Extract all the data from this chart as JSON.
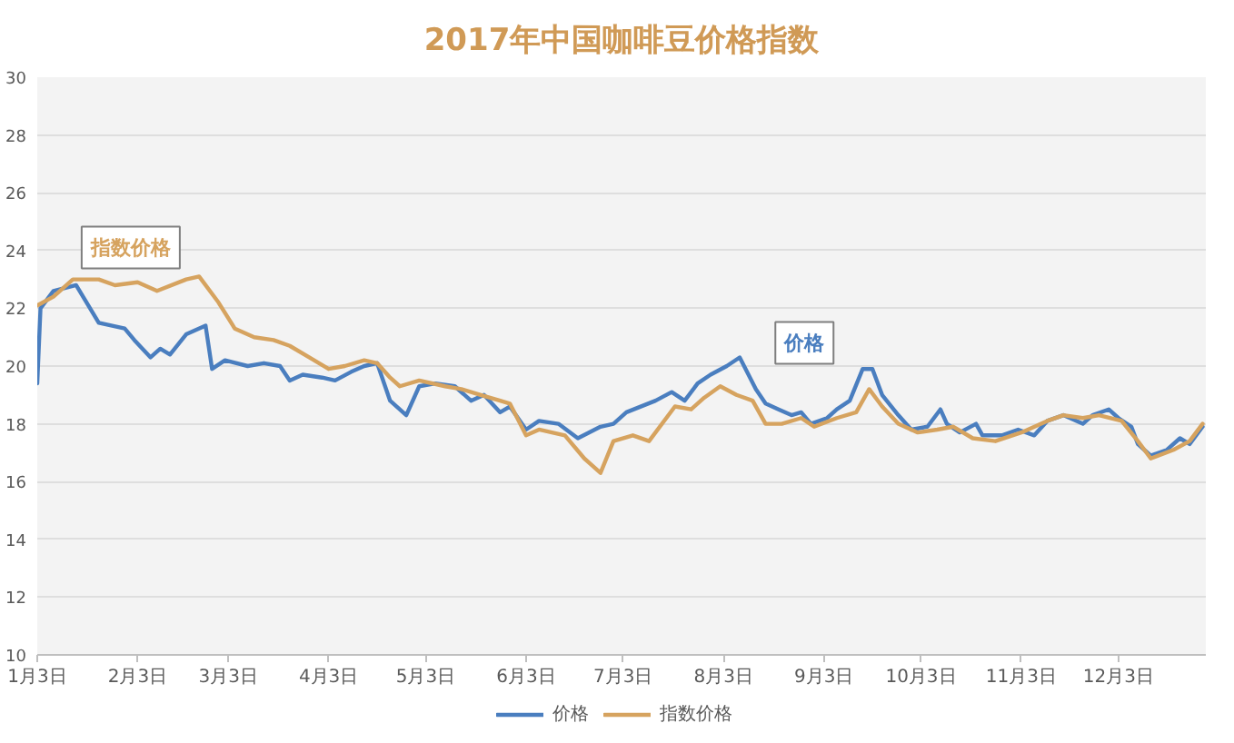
{
  "chart_data": {
    "type": "line",
    "title": "2017年中国咖啡豆价格指数",
    "xlim": [
      "2017-01-03",
      "2017-12-30"
    ],
    "xticks": [
      {
        "value": "2017-01-03",
        "label": "1月3日"
      },
      {
        "value": "2017-02-03",
        "label": "2月3日"
      },
      {
        "value": "2017-03-03",
        "label": "3月3日"
      },
      {
        "value": "2017-04-03",
        "label": "4月3日"
      },
      {
        "value": "2017-05-03",
        "label": "5月3日"
      },
      {
        "value": "2017-06-03",
        "label": "6月3日"
      },
      {
        "value": "2017-07-03",
        "label": "7月3日"
      },
      {
        "value": "2017-08-03",
        "label": "8月3日"
      },
      {
        "value": "2017-09-03",
        "label": "9月3日"
      },
      {
        "value": "2017-10-03",
        "label": "10月3日"
      },
      {
        "value": "2017-11-03",
        "label": "11月3日"
      },
      {
        "value": "2017-12-03",
        "label": "12月3日"
      }
    ],
    "ylim": [
      10,
      30
    ],
    "yticks": [
      10,
      12,
      14,
      16,
      18,
      20,
      22,
      24,
      26,
      28,
      30
    ],
    "grid": "y",
    "legend": "bottom",
    "series": [
      {
        "name": "价格",
        "color": "#4a7ebf",
        "x": [
          "2017-01-03",
          "2017-01-04",
          "2017-01-08",
          "2017-01-15",
          "2017-01-22",
          "2017-01-30",
          "2017-02-02",
          "2017-02-07",
          "2017-02-10",
          "2017-02-13",
          "2017-02-18",
          "2017-02-24",
          "2017-02-26",
          "2017-03-02",
          "2017-03-09",
          "2017-03-14",
          "2017-03-19",
          "2017-03-22",
          "2017-03-26",
          "2017-04-01",
          "2017-04-05",
          "2017-04-10",
          "2017-04-14",
          "2017-04-18",
          "2017-04-22",
          "2017-04-27",
          "2017-05-01",
          "2017-05-06",
          "2017-05-12",
          "2017-05-17",
          "2017-05-21",
          "2017-05-26",
          "2017-05-29",
          "2017-06-03",
          "2017-06-07",
          "2017-06-13",
          "2017-06-19",
          "2017-06-26",
          "2017-06-30",
          "2017-07-04",
          "2017-07-13",
          "2017-07-18",
          "2017-07-22",
          "2017-07-26",
          "2017-07-30",
          "2017-08-04",
          "2017-08-08",
          "2017-08-13",
          "2017-08-16",
          "2017-08-20",
          "2017-08-24",
          "2017-08-27",
          "2017-08-30",
          "2017-09-04",
          "2017-09-07",
          "2017-09-11",
          "2017-09-15",
          "2017-09-18",
          "2017-09-21",
          "2017-09-26",
          "2017-09-30",
          "2017-10-05",
          "2017-10-09",
          "2017-10-11",
          "2017-10-15",
          "2017-10-20",
          "2017-10-22",
          "2017-10-28",
          "2017-11-02",
          "2017-11-07",
          "2017-11-11",
          "2017-11-16",
          "2017-11-22",
          "2017-11-25",
          "2017-11-30",
          "2017-12-03",
          "2017-12-07",
          "2017-12-09",
          "2017-12-13",
          "2017-12-18",
          "2017-12-22",
          "2017-12-25",
          "2017-12-29"
        ],
        "values": [
          19.4,
          22.0,
          22.6,
          22.8,
          21.5,
          21.3,
          20.9,
          20.3,
          20.6,
          20.4,
          21.1,
          21.4,
          19.9,
          20.2,
          20.0,
          20.1,
          20.0,
          19.5,
          19.7,
          19.6,
          19.5,
          19.8,
          20.0,
          20.1,
          18.8,
          18.3,
          19.3,
          19.4,
          19.3,
          18.8,
          19.0,
          18.4,
          18.6,
          17.8,
          18.1,
          18.0,
          17.5,
          17.9,
          18.0,
          18.4,
          18.8,
          19.1,
          18.8,
          19.4,
          19.7,
          20.0,
          20.3,
          19.2,
          18.7,
          18.5,
          18.3,
          18.4,
          18.0,
          18.2,
          18.5,
          18.8,
          19.9,
          19.9,
          19.0,
          18.3,
          17.8,
          17.9,
          18.5,
          18.0,
          17.7,
          18.0,
          17.6,
          17.6,
          17.8,
          17.6,
          18.1,
          18.3,
          18.0,
          18.3,
          18.5,
          18.2,
          17.9,
          17.3,
          16.9,
          17.1,
          17.5,
          17.3,
          17.9
        ]
      },
      {
        "name": "指数价格",
        "color": "#d6a35f",
        "x": [
          "2017-01-03",
          "2017-01-08",
          "2017-01-14",
          "2017-01-22",
          "2017-01-27",
          "2017-02-03",
          "2017-02-09",
          "2017-02-18",
          "2017-02-22",
          "2017-02-28",
          "2017-03-05",
          "2017-03-11",
          "2017-03-17",
          "2017-03-22",
          "2017-03-28",
          "2017-04-03",
          "2017-04-08",
          "2017-04-14",
          "2017-04-18",
          "2017-04-22",
          "2017-04-25",
          "2017-05-01",
          "2017-05-09",
          "2017-05-14",
          "2017-05-20",
          "2017-05-26",
          "2017-05-29",
          "2017-06-03",
          "2017-06-07",
          "2017-06-15",
          "2017-06-21",
          "2017-06-26",
          "2017-06-30",
          "2017-07-06",
          "2017-07-11",
          "2017-07-19",
          "2017-07-24",
          "2017-07-28",
          "2017-08-02",
          "2017-08-07",
          "2017-08-12",
          "2017-08-16",
          "2017-08-21",
          "2017-08-27",
          "2017-08-31",
          "2017-09-07",
          "2017-09-13",
          "2017-09-17",
          "2017-09-21",
          "2017-09-26",
          "2017-10-02",
          "2017-10-08",
          "2017-10-13",
          "2017-10-19",
          "2017-10-26",
          "2017-11-03",
          "2017-11-11",
          "2017-11-16",
          "2017-11-22",
          "2017-11-27",
          "2017-12-04",
          "2017-12-09",
          "2017-12-13",
          "2017-12-20",
          "2017-12-25",
          "2017-12-29"
        ],
        "values": [
          22.1,
          22.4,
          23.0,
          23.0,
          22.8,
          22.9,
          22.6,
          23.0,
          23.1,
          22.2,
          21.3,
          21.0,
          20.9,
          20.7,
          20.3,
          19.9,
          20.0,
          20.2,
          20.1,
          19.6,
          19.3,
          19.5,
          19.3,
          19.2,
          19.0,
          18.8,
          18.7,
          17.6,
          17.8,
          17.6,
          16.8,
          16.3,
          17.4,
          17.6,
          17.4,
          18.6,
          18.5,
          18.9,
          19.3,
          19.0,
          18.8,
          18.0,
          18.0,
          18.2,
          17.9,
          18.2,
          18.4,
          19.2,
          18.6,
          18.0,
          17.7,
          17.8,
          17.9,
          17.5,
          17.4,
          17.7,
          18.1,
          18.3,
          18.2,
          18.3,
          18.1,
          17.4,
          16.8,
          17.1,
          17.4,
          18.0
        ]
      }
    ],
    "annotations": [
      "指数价格",
      {
        "text": "价格",
        "x": "2017-08-28",
        "y": 20.8
      }
    ]
  }
}
